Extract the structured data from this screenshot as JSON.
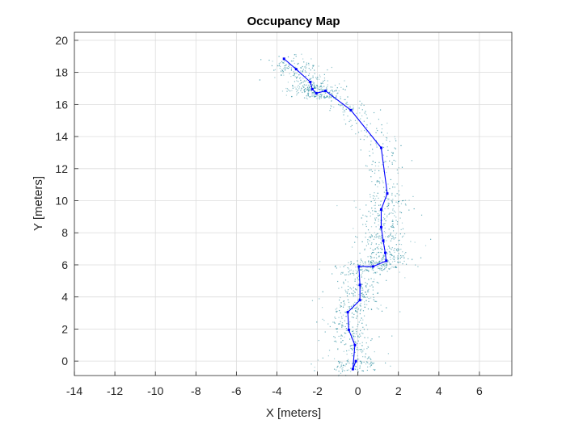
{
  "chart_data": {
    "type": "line",
    "title": "Occupancy Map",
    "xlabel": "X [meters]",
    "ylabel": "Y [meters]",
    "xlim": [
      -14,
      7.6
    ],
    "ylim": [
      -0.9,
      20.5
    ],
    "xticks": [
      -14,
      -12,
      -10,
      -8,
      -6,
      -4,
      -2,
      0,
      2,
      4,
      6
    ],
    "yticks": [
      0,
      2,
      4,
      6,
      8,
      10,
      12,
      14,
      16,
      18,
      20
    ],
    "grid": true,
    "colors": {
      "trajectory": "#0000ff",
      "occupancy": "#2a8c9e"
    },
    "trajectory": {
      "x": [
        -0.1,
        -0.25,
        -0.15,
        -0.45,
        -0.5,
        0.1,
        0.1,
        0.05,
        0.75,
        1.4,
        1.35,
        1.25,
        1.15,
        1.15,
        1.45,
        1.15,
        -0.35,
        -1.6,
        -2.05,
        -2.25,
        -2.35,
        -3.05,
        -3.65
      ],
      "y": [
        0.0,
        -0.5,
        1.0,
        1.95,
        3.05,
        3.8,
        4.75,
        5.9,
        5.9,
        6.25,
        6.75,
        7.5,
        8.35,
        9.45,
        10.45,
        13.3,
        15.65,
        16.85,
        16.7,
        16.95,
        17.4,
        18.2,
        18.85
      ]
    }
  }
}
